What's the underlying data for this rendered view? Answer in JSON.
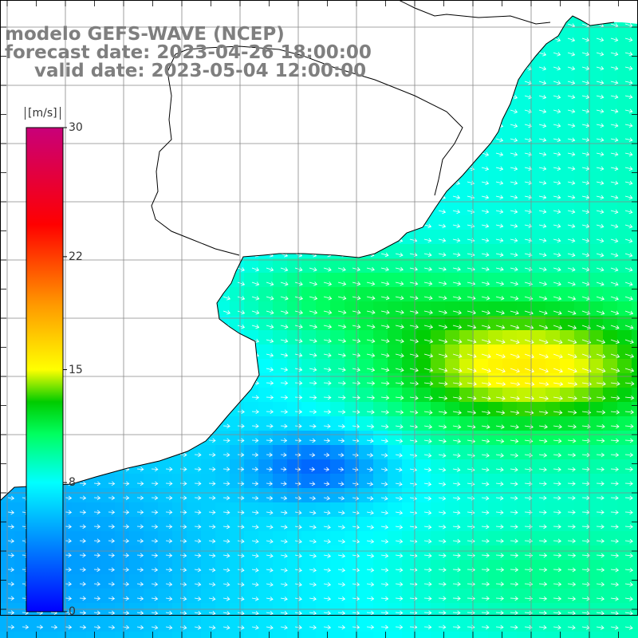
{
  "title": {
    "line1": "modelo GEFS-WAVE (NCEP)",
    "line2": "forecast date: 2023-04-26 18:00:00",
    "line3": "valid date: 2023-05-04 12:00:00"
  },
  "colorbar": {
    "unit": "[m/s]",
    "ticks": [
      "30",
      "22",
      "15",
      "8",
      "0"
    ],
    "tick_values": [
      30,
      22,
      15,
      8,
      0
    ],
    "min": 0,
    "max": 30,
    "stops": [
      {
        "v": 0,
        "color": "#0000ff"
      },
      {
        "v": 4,
        "color": "#0080ff"
      },
      {
        "v": 8,
        "color": "#00ffff"
      },
      {
        "v": 11,
        "color": "#00ff60"
      },
      {
        "v": 13,
        "color": "#00cc00"
      },
      {
        "v": 15,
        "color": "#ffff00"
      },
      {
        "v": 19,
        "color": "#ff9900"
      },
      {
        "v": 24,
        "color": "#ff0000"
      },
      {
        "v": 30,
        "color": "#c8007a"
      }
    ]
  },
  "map": {
    "field": "wind speed",
    "units": "m/s",
    "land_color": "#ffffff",
    "grid_color": "#888888",
    "arrow_color": "#ffffff",
    "wind_direction": "west-to-east"
  }
}
